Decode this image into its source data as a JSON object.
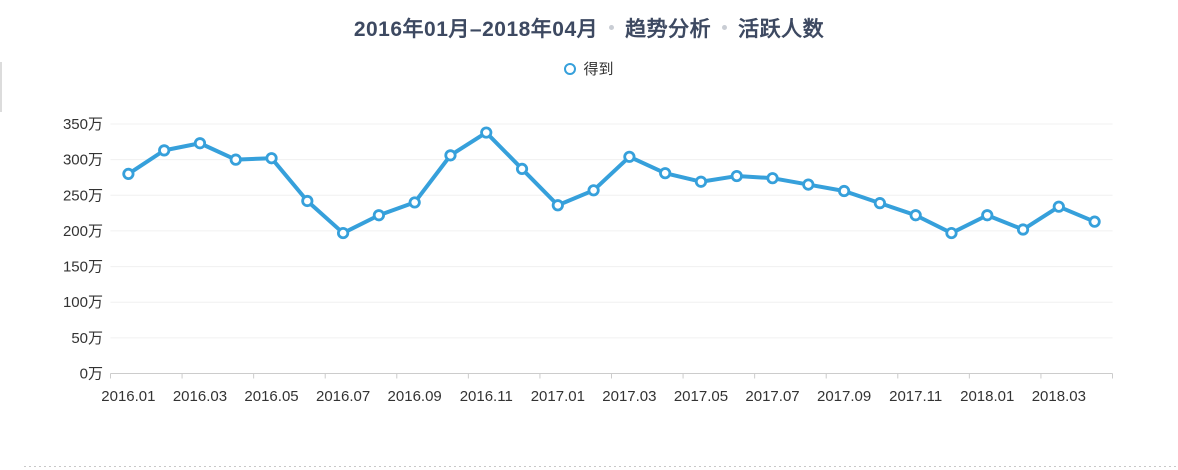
{
  "header": {
    "date_range": "2016年01月–2018年04月",
    "section1": "趋势分析",
    "section2": "活跃人数"
  },
  "legend": {
    "series_label": "得到"
  },
  "colors": {
    "series_line": "#36A0DB",
    "marker_fill": "#FFFFFF",
    "title_text": "#3D4961",
    "axis_text": "#333333",
    "grid_line": "#F0F0F0",
    "axis_line": "#CCCCCC",
    "title_separator_dot": "#C9CDD4"
  },
  "chart_data": {
    "type": "line",
    "title": "2016年01月–2018年04月 趋势分析 活跃人数",
    "legend": [
      "得到"
    ],
    "legend_position": "top-center",
    "y_unit": "万",
    "ylim": [
      0,
      350
    ],
    "y_tick_step": 50,
    "y_tick_labels": [
      "0万",
      "50万",
      "100万",
      "150万",
      "200万",
      "250万",
      "300万",
      "350万"
    ],
    "grid": true,
    "marker": "open-circle",
    "categories": [
      "2016.01",
      "2016.02",
      "2016.03",
      "2016.04",
      "2016.05",
      "2016.06",
      "2016.07",
      "2016.08",
      "2016.09",
      "2016.10",
      "2016.11",
      "2016.12",
      "2017.01",
      "2017.02",
      "2017.03",
      "2017.04",
      "2017.05",
      "2017.06",
      "2017.07",
      "2017.08",
      "2017.09",
      "2017.10",
      "2017.11",
      "2017.12",
      "2018.01",
      "2018.02",
      "2018.03",
      "2018.04"
    ],
    "visible_x_labels": [
      "2016.01",
      "2016.03",
      "2016.05",
      "2016.07",
      "2016.09",
      "2016.11",
      "2017.01",
      "2017.03",
      "2017.05",
      "2017.07",
      "2017.09",
      "2017.11",
      "2018.01",
      "2018.03"
    ],
    "series": [
      {
        "name": "得到",
        "values": [
          280,
          313,
          323,
          300,
          302,
          242,
          197,
          222,
          240,
          306,
          338,
          287,
          236,
          257,
          304,
          281,
          269,
          277,
          274,
          265,
          256,
          239,
          222,
          197,
          222,
          202,
          234,
          213
        ]
      }
    ]
  }
}
